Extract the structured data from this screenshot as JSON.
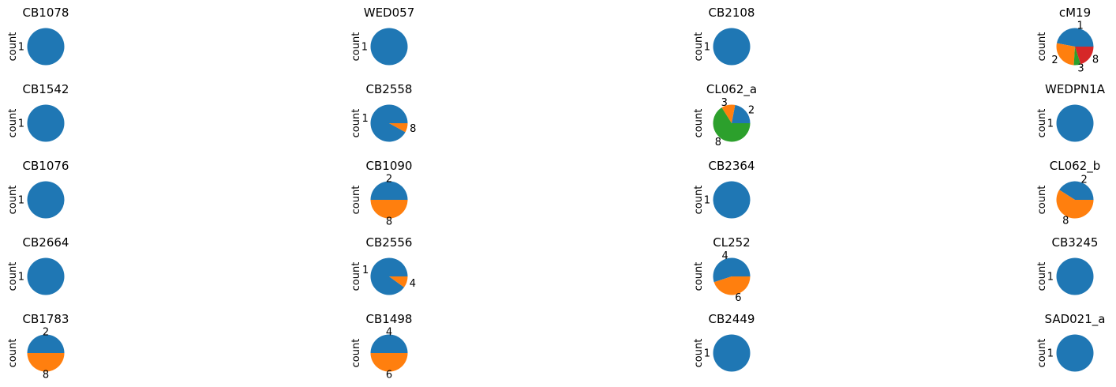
{
  "chart_data": [
    {
      "type": "pie",
      "title": "CB1078",
      "ylabel": "count",
      "slices": [
        {
          "label": "1",
          "value": 1,
          "color": "#1f77b4"
        }
      ]
    },
    {
      "type": "pie",
      "title": "WED057",
      "ylabel": "count",
      "slices": [
        {
          "label": "1",
          "value": 1,
          "color": "#1f77b4"
        }
      ]
    },
    {
      "type": "pie",
      "title": "CB2108",
      "ylabel": "count",
      "slices": [
        {
          "label": "1",
          "value": 1,
          "color": "#1f77b4"
        }
      ]
    },
    {
      "type": "pie",
      "title": "cM19",
      "ylabel": "count",
      "slices": [
        {
          "label": "1",
          "value": 47,
          "color": "#1f77b4"
        },
        {
          "label": "2",
          "value": 27,
          "color": "#ff7f0e"
        },
        {
          "label": "3",
          "value": 6,
          "color": "#2ca02c"
        },
        {
          "label": "8",
          "value": 20,
          "color": "#d62728"
        }
      ]
    },
    {
      "type": "pie",
      "title": "CB1542",
      "ylabel": "count",
      "slices": [
        {
          "label": "1",
          "value": 1,
          "color": "#1f77b4"
        }
      ]
    },
    {
      "type": "pie",
      "title": "CB2558",
      "ylabel": "count",
      "slices": [
        {
          "label": "1",
          "value": 92,
          "color": "#1f77b4"
        },
        {
          "label": "8",
          "value": 8,
          "color": "#ff7f0e"
        }
      ]
    },
    {
      "type": "pie",
      "title": "CL062_a",
      "ylabel": "count",
      "slices": [
        {
          "label": "2",
          "value": 22,
          "color": "#1f77b4"
        },
        {
          "label": "3",
          "value": 12,
          "color": "#ff7f0e"
        },
        {
          "label": "8",
          "value": 66,
          "color": "#2ca02c"
        }
      ]
    },
    {
      "type": "pie",
      "title": "WEDPN1A",
      "ylabel": "count",
      "slices": [
        {
          "label": "1",
          "value": 1,
          "color": "#1f77b4"
        }
      ]
    },
    {
      "type": "pie",
      "title": "CB1076",
      "ylabel": "count",
      "slices": [
        {
          "label": "1",
          "value": 1,
          "color": "#1f77b4"
        }
      ]
    },
    {
      "type": "pie",
      "title": "CB1090",
      "ylabel": "count",
      "slices": [
        {
          "label": "2",
          "value": 50,
          "color": "#1f77b4"
        },
        {
          "label": "8",
          "value": 50,
          "color": "#ff7f0e"
        }
      ]
    },
    {
      "type": "pie",
      "title": "CB2364",
      "ylabel": "count",
      "slices": [
        {
          "label": "1",
          "value": 1,
          "color": "#1f77b4"
        }
      ]
    },
    {
      "type": "pie",
      "title": "CL062_b",
      "ylabel": "count",
      "slices": [
        {
          "label": "2",
          "value": 41,
          "color": "#1f77b4"
        },
        {
          "label": "8",
          "value": 59,
          "color": "#ff7f0e"
        }
      ]
    },
    {
      "type": "pie",
      "title": "CB2664",
      "ylabel": "count",
      "slices": [
        {
          "label": "1",
          "value": 1,
          "color": "#1f77b4"
        }
      ]
    },
    {
      "type": "pie",
      "title": "CB2556",
      "ylabel": "count",
      "slices": [
        {
          "label": "1",
          "value": 90,
          "color": "#1f77b4"
        },
        {
          "label": "4",
          "value": 10,
          "color": "#ff7f0e"
        }
      ]
    },
    {
      "type": "pie",
      "title": "CL252",
      "ylabel": "count",
      "slices": [
        {
          "label": "4",
          "value": 55,
          "color": "#1f77b4"
        },
        {
          "label": "6",
          "value": 45,
          "color": "#ff7f0e"
        }
      ]
    },
    {
      "type": "pie",
      "title": "CB3245",
      "ylabel": "count",
      "slices": [
        {
          "label": "1",
          "value": 1,
          "color": "#1f77b4"
        }
      ]
    },
    {
      "type": "pie",
      "title": "CB1783",
      "ylabel": "count",
      "slices": [
        {
          "label": "2",
          "value": 50,
          "color": "#1f77b4"
        },
        {
          "label": "8",
          "value": 50,
          "color": "#ff7f0e"
        }
      ]
    },
    {
      "type": "pie",
      "title": "CB1498",
      "ylabel": "count",
      "slices": [
        {
          "label": "4",
          "value": 50,
          "color": "#1f77b4"
        },
        {
          "label": "6",
          "value": 50,
          "color": "#ff7f0e"
        }
      ]
    },
    {
      "type": "pie",
      "title": "CB2449",
      "ylabel": "count",
      "slices": [
        {
          "label": "1",
          "value": 1,
          "color": "#1f77b4"
        }
      ]
    },
    {
      "type": "pie",
      "title": "SAD021_a",
      "ylabel": "count",
      "slices": [
        {
          "label": "1",
          "value": 1,
          "color": "#1f77b4"
        }
      ]
    }
  ]
}
